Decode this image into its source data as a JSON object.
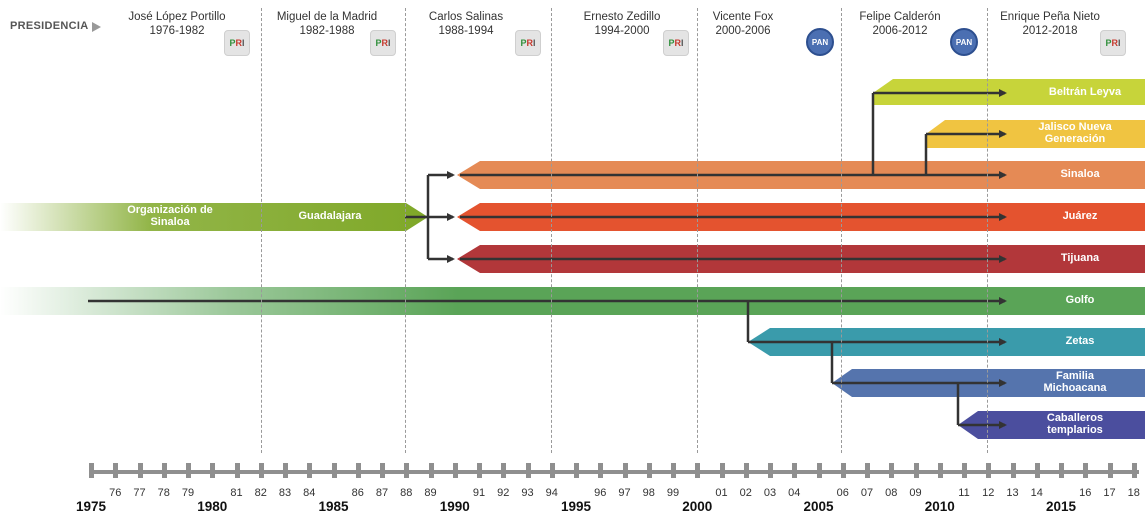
{
  "header": {
    "presidencia_label": "PRESIDENCIA",
    "presidents": [
      {
        "name": "José López Portillo",
        "term": "1976-1982",
        "party": "PRI"
      },
      {
        "name": "Miguel de la Madrid",
        "term": "1982-1988",
        "party": "PRI"
      },
      {
        "name": "Carlos Salinas",
        "term": "1988-1994",
        "party": "PRI"
      },
      {
        "name": "Ernesto Zedillo",
        "term": "1994-2000",
        "party": "PRI"
      },
      {
        "name": "Vicente Fox",
        "term": "2000-2006",
        "party": "PAN"
      },
      {
        "name": "Felipe Calderón",
        "term": "2006-2012",
        "party": "PAN"
      },
      {
        "name": "Enrique Peña Nieto",
        "term": "2012-2018",
        "party": "PRI"
      }
    ]
  },
  "groups": [
    {
      "name": "Beltrán Leyva",
      "start": 2008.5,
      "color": "#c7d43a"
    },
    {
      "name": "Jalisco Nueva Generación",
      "start": 2010.5,
      "color": "#f0c441"
    },
    {
      "name": "Sinaloa",
      "start": 1990,
      "color": "#e58a55"
    },
    {
      "name": "Organización de Sinaloa",
      "start": 1975,
      "color": "#7fa828"
    },
    {
      "name": "Guadalajara",
      "start": 1980,
      "color": "#7fa828"
    },
    {
      "name": "Juárez",
      "start": 1990,
      "color": "#e4532f"
    },
    {
      "name": "Tijuana",
      "start": 1990,
      "color": "#b2373a"
    },
    {
      "name": "Golfo",
      "start": 1975,
      "color": "#5aa457"
    },
    {
      "name": "Zetas",
      "start": 2002,
      "color": "#3a9bab"
    },
    {
      "name": "Familia Michoacana",
      "start": 2005.5,
      "color": "#5574ad"
    },
    {
      "name": "Caballeros templarios",
      "start": 2011,
      "color": "#4b4e9e"
    }
  ],
  "axis": {
    "minor_labels": [
      "76",
      "77",
      "78",
      "79",
      "81",
      "82",
      "83",
      "84",
      "86",
      "87",
      "88",
      "89",
      "91",
      "92",
      "93",
      "94",
      "96",
      "97",
      "98",
      "99",
      "01",
      "02",
      "03",
      "04",
      "06",
      "07",
      "08",
      "09",
      "11",
      "12",
      "13",
      "14",
      "16",
      "17",
      "18"
    ],
    "major_labels": [
      "1975",
      "1980",
      "1985",
      "1990",
      "1995",
      "2000",
      "2005",
      "2010",
      "2015"
    ]
  }
}
